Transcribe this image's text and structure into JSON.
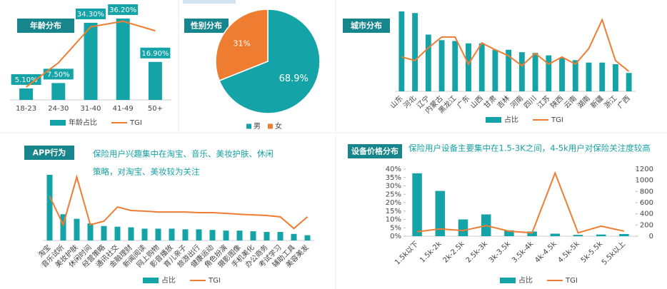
{
  "chart_data": [
    {
      "type": "bar",
      "title": "年龄分布",
      "categories": [
        "18-23",
        "24-30",
        "31-40",
        "41-49",
        "50+"
      ],
      "series": [
        {
          "name": "年龄占比",
          "color": "#14a3a6",
          "values": [
            5.1,
            7.5,
            34.3,
            36.2,
            16.9
          ],
          "value_labels": [
            "5.10%",
            "7.50%",
            "34.30%",
            "36.20%",
            "16.90%"
          ]
        },
        {
          "name": "TGI",
          "color": "#ef7d31",
          "axis": "y2",
          "values": [
            23,
            66,
            130,
            140,
            123
          ]
        }
      ],
      "ylim": [
        0,
        40
      ],
      "y2lim": [
        0,
        160
      ]
    },
    {
      "type": "pie",
      "title": "性别分布",
      "categories": [
        "男",
        "女"
      ],
      "values": [
        68.9,
        31
      ],
      "value_labels": [
        "68.9%",
        "31%"
      ],
      "colors": [
        "#14a3a6",
        "#ef7d31"
      ]
    },
    {
      "type": "bar",
      "title": "城市分布",
      "categories": [
        "山东",
        "河北",
        "辽宁",
        "内蒙古",
        "黑龙江",
        "广东",
        "山西",
        "甘肃",
        "吉林",
        "河南",
        "四川",
        "江苏",
        "陕西",
        "云南",
        "湖南",
        "新疆",
        "浙江",
        "广西"
      ],
      "series": [
        {
          "name": "占比",
          "color": "#14a3a6",
          "values": [
            10,
            9.8,
            7.1,
            6.4,
            6.3,
            6.0,
            6.0,
            5.2,
            5.2,
            4.9,
            4.8,
            4.5,
            4.2,
            3.9,
            3.6,
            3.6,
            3.4,
            2.3
          ]
        },
        {
          "name": "TGI",
          "color": "#ef7d31",
          "axis": "y2",
          "values": [
            86,
            77,
            109,
            136,
            136,
            68,
            121,
            104,
            89,
            64,
            95,
            68,
            86,
            68,
            107,
            179,
            77,
            50
          ]
        }
      ],
      "ylim": [
        0,
        10
      ],
      "y2lim": [
        0,
        200
      ]
    },
    {
      "type": "bar",
      "title": "APP行为",
      "annotation": [
        "保险用户兴趣集中在淘宝、音乐、美妆护肤、休闲",
        "策略，对淘宝、美妆较为关注"
      ],
      "categories": [
        "淘宝",
        "音乐试听",
        "美妆护肤",
        "休闲时间",
        "经营策略",
        "通讯社交",
        "金融理财",
        "新闻阅读",
        "网上购物",
        "影音播放",
        "育儿亲子",
        "旅游出行",
        "健康运动",
        "角色扮演",
        "摄影图像",
        "手机美化",
        "办公商务",
        "考试学习",
        "辅助工具",
        "美容美发"
      ],
      "series": [
        {
          "name": "占比",
          "color": "#14a3a6",
          "values": [
            10,
            4.0,
            3.3,
            2.6,
            2.2,
            2.1,
            2.0,
            1.8,
            1.8,
            1.8,
            1.7,
            1.7,
            1.6,
            1.5,
            1.5,
            1.4,
            1.3,
            1.3,
            1.0,
            0.8
          ]
        },
        {
          "name": "TGI",
          "color": "#ef7d31",
          "axis": "y2",
          "values": [
            202,
            72,
            290,
            72,
            88,
            153,
            137,
            134,
            130,
            130,
            130,
            127,
            127,
            124,
            120,
            117,
            114,
            108,
            55,
            108
          ]
        }
      ],
      "ylim": [
        0,
        10
      ],
      "y2lim": [
        0,
        300
      ]
    },
    {
      "type": "bar",
      "title": "设备价格分布",
      "annotation": [
        "保险用户设备主要集中在1.5-3K之间，4-5k用户对保险关注度较高"
      ],
      "categories": [
        "1.5k以下",
        "1.5k-2k",
        "2k-2.5k",
        "2.5k-3k",
        "3k-3.5k",
        "3.5k-4k",
        "4k-4.5k",
        "4.5k-5k",
        "5k-5.5k",
        "5.5k以上"
      ],
      "series": [
        {
          "name": "占比",
          "color": "#14a3a6",
          "values": [
            37.5,
            27,
            10,
            13,
            3.5,
            2.8,
            1.5,
            0.8,
            1,
            1.3
          ]
        },
        {
          "name": "TGI",
          "color": "#ef7d31",
          "axis": "y2",
          "values": [
            80,
            130,
            100,
            190,
            90,
            60,
            1130,
            60,
            180,
            90
          ]
        }
      ],
      "ylim": [
        0,
        40
      ],
      "yticks": [
        {
          "value": 0,
          "label": "0%"
        },
        {
          "value": 5,
          "label": "5%"
        },
        {
          "value": 10,
          "label": "10%"
        },
        {
          "value": 15,
          "label": "15%"
        },
        {
          "value": 20,
          "label": "20%"
        },
        {
          "value": 25,
          "label": "25%"
        },
        {
          "value": 30,
          "label": "30%"
        },
        {
          "value": 35,
          "label": "35%"
        },
        {
          "value": 40,
          "label": "40%"
        }
      ],
      "y2lim": [
        0,
        1200
      ],
      "y2ticks": [
        0,
        200,
        400,
        600,
        800,
        1000,
        1200
      ]
    }
  ]
}
